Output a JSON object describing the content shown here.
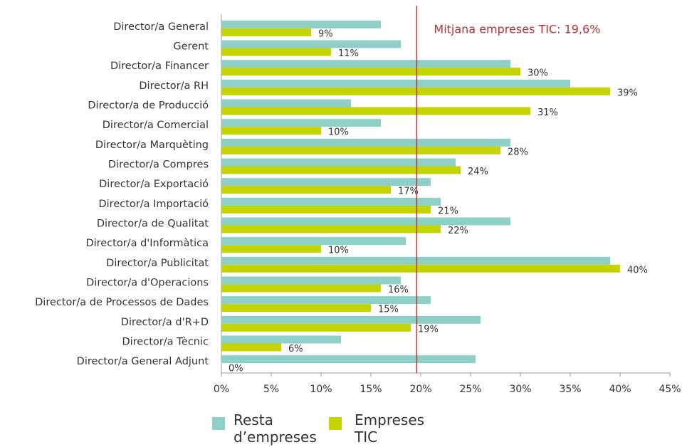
{
  "chart_data": {
    "type": "bar",
    "orientation": "horizontal",
    "categories": [
      "Director/a General",
      "Gerent",
      "Director/a Financer",
      "Director/a RH",
      "Director/a de Producció",
      "Director/a Comercial",
      "Director/a Marquèting",
      "Director/a Compres",
      "Director/a Exportació",
      "Director/a Importació",
      "Director/a de Qualitat",
      "Director/a d'Informàtica",
      "Director/a Publicitat",
      "Director/a d'Operacions",
      "Director/a de Processos de Dades",
      "Director/a d'R+D",
      "Director/a Tècnic",
      "Director/a General Adjunt"
    ],
    "series": [
      {
        "name": "Resta d’empreses",
        "color": "#8ecfc8",
        "values": [
          16,
          18,
          29,
          35,
          13,
          16,
          29,
          23.5,
          21,
          22,
          29,
          18.5,
          39,
          18,
          21,
          26,
          12,
          25.5
        ]
      },
      {
        "name": "Empreses TIC",
        "color": "#c5d300",
        "values": [
          9,
          11,
          30,
          39,
          31,
          10,
          28,
          24,
          17,
          21,
          22,
          10,
          40,
          16,
          15,
          19,
          6,
          0
        ],
        "value_labels": [
          "9%",
          "11%",
          "30%",
          "39%",
          "31%",
          "10%",
          "28%",
          "24%",
          "17%",
          "21%",
          "22%",
          "10%",
          "40%",
          "16%",
          "15%",
          "19%",
          "6%",
          "0%"
        ]
      }
    ],
    "xlim": [
      0,
      45
    ],
    "xticks": [
      {
        "value": 0,
        "label": "0%"
      },
      {
        "value": 5,
        "label": "5%"
      },
      {
        "value": 10,
        "label": "10%"
      },
      {
        "value": 15,
        "label": "15%"
      },
      {
        "value": 20,
        "label": "20%"
      },
      {
        "value": 25,
        "label": "25%"
      },
      {
        "value": 30,
        "label": "30%"
      },
      {
        "value": 35,
        "label": "35%"
      },
      {
        "value": 40,
        "label": "40%"
      },
      {
        "value": 45,
        "label": "45%"
      }
    ],
    "reference_line": {
      "value": 19.6,
      "label": "Mitjana empreses TIC: 19,6%",
      "color": "#b83232"
    }
  }
}
